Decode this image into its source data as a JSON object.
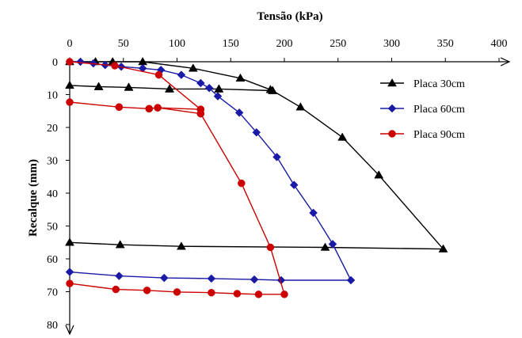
{
  "chart_data": {
    "type": "line",
    "xlabel": "Tensão (kPa)",
    "ylabel": "Recalque (mm)",
    "xlim": [
      0,
      400
    ],
    "ylim": [
      0,
      80
    ],
    "x_ticks": [
      "0",
      "50",
      "100",
      "150",
      "200",
      "250",
      "300",
      "350",
      "400"
    ],
    "y_ticks": [
      "0",
      "10",
      "20",
      "30",
      "40",
      "50",
      "60",
      "70",
      "80"
    ],
    "x_axis_position": "top",
    "y_axis_inverted": true,
    "grid": false,
    "legend_position": "top-right",
    "series": [
      {
        "name": "Placa 30cm",
        "color": "#000000",
        "marker": "triangle",
        "points": [
          [
            0,
            0
          ],
          [
            24,
            0
          ],
          [
            40,
            0
          ],
          [
            68,
            0
          ],
          [
            115,
            2
          ],
          [
            159,
            5
          ],
          [
            187,
            8.5
          ],
          [
            189,
            8.8
          ],
          [
            139,
            8.3
          ],
          [
            93,
            8.3
          ],
          [
            55,
            7.8
          ],
          [
            27,
            7.6
          ],
          [
            0,
            7.2
          ],
          [
            27,
            7.6
          ],
          [
            55,
            7.8
          ],
          [
            93,
            8.3
          ],
          [
            139,
            8.3
          ],
          [
            189,
            8.8
          ],
          [
            215,
            13.8
          ],
          [
            254,
            23
          ],
          [
            288,
            34.5
          ],
          [
            348,
            57
          ],
          [
            238,
            56.5
          ],
          [
            104,
            56.2
          ],
          [
            47,
            55.7
          ],
          [
            0,
            55
          ]
        ]
      },
      {
        "name": "Placa 60cm",
        "color": "#1a1aa6",
        "marker": "diamond",
        "points": [
          [
            0,
            0
          ],
          [
            10,
            0
          ],
          [
            22,
            0.5
          ],
          [
            33,
            1
          ],
          [
            48,
            1.5
          ],
          [
            68,
            2
          ],
          [
            85,
            2.5
          ],
          [
            104,
            4
          ],
          [
            122,
            6.5
          ],
          [
            130,
            8
          ],
          [
            138,
            10.5
          ],
          [
            158,
            15.5
          ],
          [
            174,
            21.5
          ],
          [
            193,
            29
          ],
          [
            209,
            37.5
          ],
          [
            227,
            46
          ],
          [
            245,
            55.5
          ],
          [
            262,
            66.5
          ],
          [
            197,
            66.5
          ],
          [
            172,
            66.3
          ],
          [
            132,
            66
          ],
          [
            88,
            65.8
          ],
          [
            46,
            65.2
          ],
          [
            0,
            64
          ]
        ]
      },
      {
        "name": "Placa 90cm",
        "color": "#cc0000",
        "marker": "circle",
        "points": [
          [
            0,
            0
          ],
          [
            42,
            1.2
          ],
          [
            83,
            4
          ],
          [
            122,
            14.5
          ],
          [
            122,
            15.8
          ],
          [
            82,
            14
          ],
          [
            74,
            14.3
          ],
          [
            46,
            13.8
          ],
          [
            0,
            12.3
          ],
          [
            46,
            13.8
          ],
          [
            74,
            14.3
          ],
          [
            82,
            14
          ],
          [
            122,
            14.5
          ],
          [
            122,
            15.8
          ],
          [
            160,
            37
          ],
          [
            187,
            56.5
          ],
          [
            200,
            70.8
          ],
          [
            176,
            70.8
          ],
          [
            156,
            70.6
          ],
          [
            132,
            70.3
          ],
          [
            100,
            70.1
          ],
          [
            72,
            69.6
          ],
          [
            43,
            69.3
          ],
          [
            0,
            67.5
          ]
        ]
      }
    ]
  }
}
